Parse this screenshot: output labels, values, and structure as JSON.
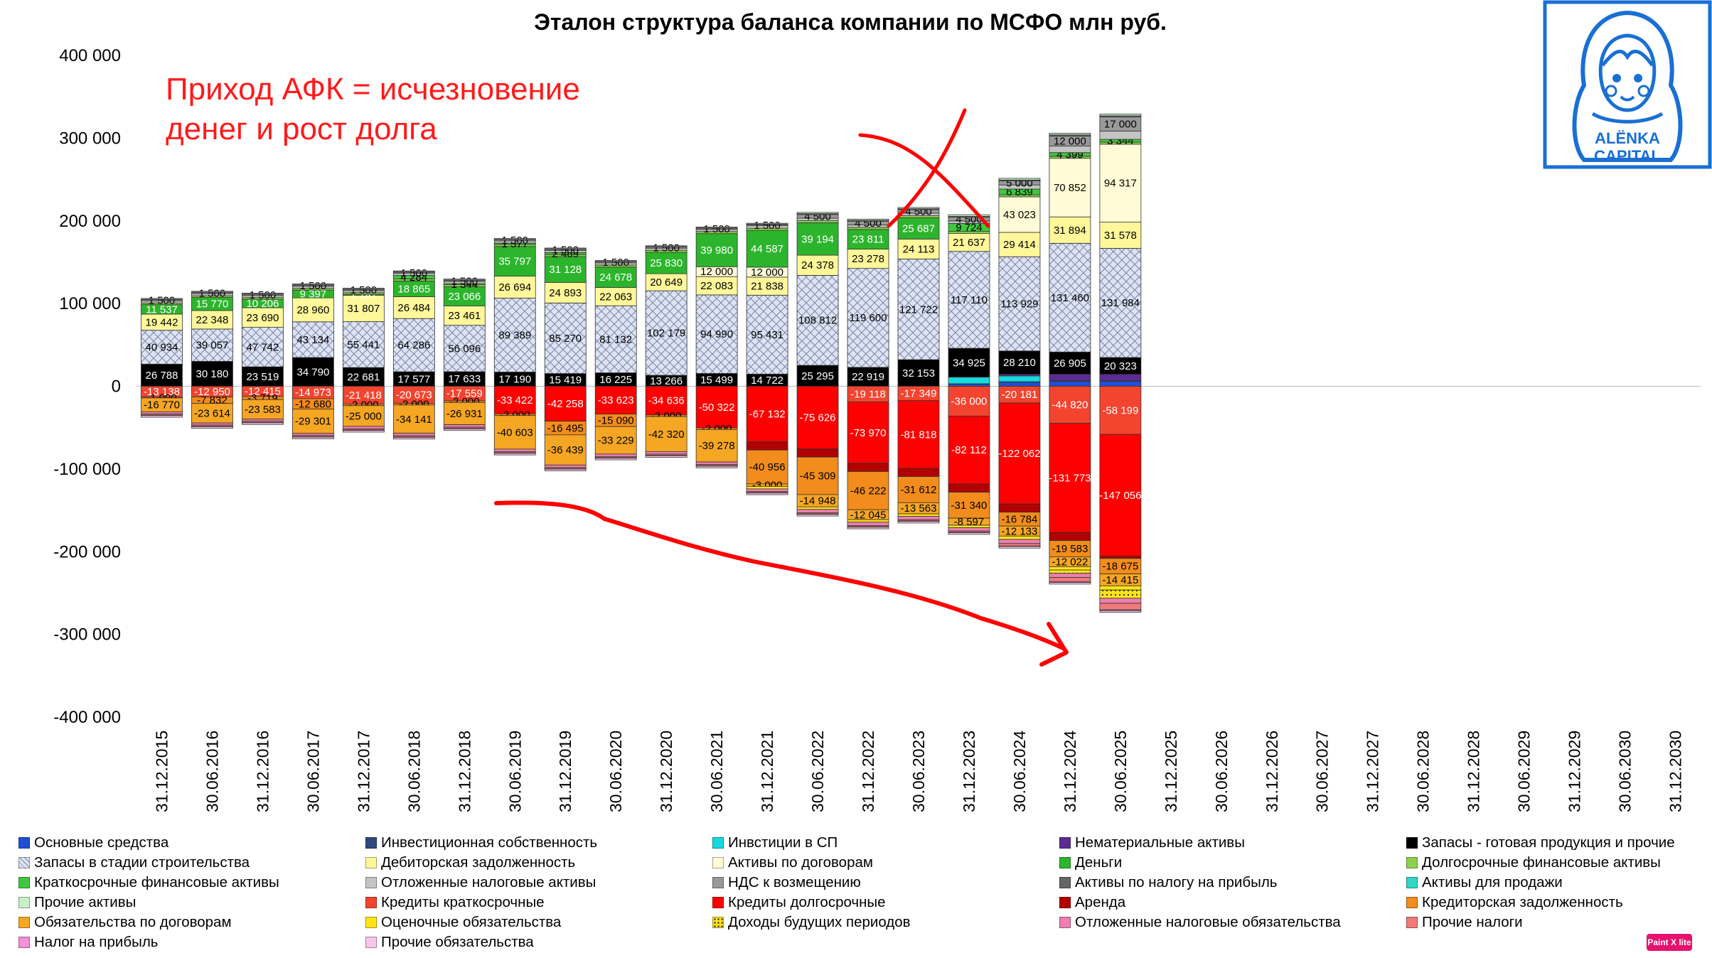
{
  "chart_data": {
    "type": "bar",
    "stacked": true,
    "title": "Эталон структура баланса компании по МСФО млн руб.",
    "ylim": [
      -400000,
      400000
    ],
    "yticks": [
      {
        "v": 400000,
        "label": "400 000"
      },
      {
        "v": 300000,
        "label": "300 000"
      },
      {
        "v": 200000,
        "label": "200 000"
      },
      {
        "v": 100000,
        "label": "100 000"
      },
      {
        "v": 0,
        "label": "0"
      },
      {
        "v": -100000,
        "label": "-100 000"
      },
      {
        "v": -200000,
        "label": "-200 000"
      },
      {
        "v": -300000,
        "label": "-300 000"
      },
      {
        "v": -400000,
        "label": "-400 000"
      }
    ],
    "categories": [
      "31.12.2015",
      "30.06.2016",
      "31.12.2016",
      "30.06.2017",
      "31.12.2017",
      "30.06.2018",
      "31.12.2018",
      "30.06.2019",
      "31.12.2019",
      "30.06.2020",
      "31.12.2020",
      "30.06.2021",
      "31.12.2021",
      "30.06.2022",
      "31.12.2022",
      "30.06.2023",
      "31.12.2023",
      "30.06.2024",
      "31.12.2024",
      "30.06.2025",
      "31.12.2025",
      "30.06.2026",
      "31.12.2026",
      "30.06.2027",
      "31.12.2027",
      "30.06.2028",
      "31.12.2028",
      "30.06.2029",
      "31.12.2029",
      "30.06.2030",
      "31.12.2030"
    ],
    "series": [
      {
        "name": "Основные средства",
        "color": "#1f4fd6",
        "pattern": "",
        "labels": false,
        "values": [
          0,
          0,
          0,
          0,
          0,
          0,
          0,
          0,
          0,
          0,
          0,
          0,
          0,
          0,
          0,
          0,
          2500,
          5000,
          6000,
          6000,
          null,
          null,
          null,
          null,
          null,
          null,
          null,
          null,
          null,
          null,
          null
        ]
      },
      {
        "name": "Инвестиционная собственность",
        "color": "#2e4a7c",
        "pattern": "",
        "labels": false,
        "values": [
          0,
          0,
          0,
          0,
          0,
          0,
          0,
          0,
          0,
          0,
          0,
          0,
          0,
          0,
          0,
          0,
          500,
          500,
          500,
          500,
          null,
          null,
          null,
          null,
          null,
          null,
          null,
          null,
          null,
          null,
          null
        ]
      },
      {
        "name": "Инвстиции в СП",
        "color": "#17d9e0",
        "pattern": "",
        "labels": false,
        "values": [
          0,
          0,
          0,
          0,
          0,
          0,
          0,
          0,
          0,
          0,
          0,
          0,
          0,
          0,
          0,
          0,
          8000,
          7000,
          0,
          0,
          null,
          null,
          null,
          null,
          null,
          null,
          null,
          null,
          null,
          null,
          null
        ]
      },
      {
        "name": "Нематериальные активы",
        "color": "#5a2d91",
        "pattern": "",
        "labels": false,
        "values": [
          0,
          0,
          0,
          0,
          0,
          0,
          0,
          0,
          0,
          0,
          0,
          0,
          0,
          0,
          0,
          0,
          0,
          2000,
          8000,
          8000,
          null,
          null,
          null,
          null,
          null,
          null,
          null,
          null,
          null,
          null,
          null
        ]
      },
      {
        "name": "Запасы - готовая продукция и прочие",
        "color": "#000000",
        "pattern": "",
        "labels": true,
        "values": [
          26788,
          30180,
          23519,
          34790,
          22681,
          17577,
          17633,
          17190,
          15419,
          16225,
          13266,
          15499,
          14722,
          25295,
          22919,
          32153,
          34925,
          28210,
          26905,
          20323,
          null,
          null,
          null,
          null,
          null,
          null,
          null,
          null,
          null,
          null,
          null
        ]
      },
      {
        "name": "Запасы в стадии строительства",
        "color": "#dde3f3",
        "pattern": "hatch",
        "labels": true,
        "values": [
          40934,
          39057,
          47742,
          43134,
          55441,
          64286,
          56096,
          89389,
          85270,
          81132,
          102179,
          94990,
          95431,
          108812,
          119600,
          121722,
          117110,
          113929,
          131460,
          131984,
          null,
          null,
          null,
          null,
          null,
          null,
          null,
          null,
          null,
          null,
          null
        ]
      },
      {
        "name": "Дебиторская задолженность",
        "color": "#fff79a",
        "pattern": "",
        "labels": true,
        "values": [
          19442,
          22348,
          23690,
          28960,
          31807,
          26484,
          23461,
          26694,
          24893,
          22063,
          20649,
          22083,
          21838,
          24378,
          23278,
          24113,
          21637,
          29414,
          31894,
          31578,
          null,
          null,
          null,
          null,
          null,
          null,
          null,
          null,
          null,
          null,
          null
        ]
      },
      {
        "name": "Активы по договорам",
        "color": "#fffbd6",
        "pattern": "",
        "labels": true,
        "values": [
          0,
          0,
          0,
          0,
          0,
          0,
          0,
          0,
          0,
          0,
          0,
          12000,
          12000,
          0,
          0,
          0,
          0,
          43023,
          70852,
          94317,
          null,
          null,
          null,
          null,
          null,
          null,
          null,
          null,
          null,
          null,
          null
        ]
      },
      {
        "name": "Деньги",
        "color": "#2cb52c",
        "pattern": "",
        "labels": true,
        "values": [
          11537,
          15770,
          10206,
          9397,
          1187,
          18865,
          23066,
          35797,
          31128,
          24678,
          25830,
          39980,
          44587,
          39194,
          23811,
          25687,
          0,
          0,
          0,
          0,
          null,
          null,
          null,
          null,
          null,
          null,
          null,
          null,
          null,
          null,
          null
        ]
      },
      {
        "name": "Долгосрочные финансовые активы",
        "color": "#8fd14f",
        "pattern": "",
        "labels": false,
        "values": [
          2000,
          2000,
          2000,
          2000,
          2000,
          2500,
          2500,
          2500,
          2500,
          2500,
          2500,
          2500,
          2500,
          2500,
          2500,
          2500,
          2500,
          2500,
          2500,
          2500,
          null,
          null,
          null,
          null,
          null,
          null,
          null,
          null,
          null,
          null,
          null
        ]
      },
      {
        "name": "Краткосрочные финансовые активы",
        "color": "#3fc83f",
        "pattern": "",
        "labels": true,
        "values": [
          0,
          0,
          0,
          0,
          0,
          4284,
          1344,
          1577,
          2469,
          0,
          0,
          0,
          0,
          0,
          0,
          0,
          9724,
          6839,
          4399,
          3344,
          null,
          null,
          null,
          null,
          null,
          null,
          null,
          null,
          null,
          null,
          null
        ]
      },
      {
        "name": "Отложенные налоговые активы",
        "color": "#c4c4c4",
        "pattern": "",
        "labels": false,
        "values": [
          2500,
          2500,
          2500,
          2500,
          2500,
          2500,
          2500,
          2500,
          2500,
          2500,
          2500,
          2500,
          3000,
          3000,
          3000,
          3000,
          3000,
          5000,
          8000,
          10000,
          null,
          null,
          null,
          null,
          null,
          null,
          null,
          null,
          null,
          null,
          null
        ]
      },
      {
        "name": "НДС к возмещению",
        "color": "#999999",
        "pattern": "",
        "labels": true,
        "values": [
          1500,
          1500,
          1500,
          1500,
          1500,
          1500,
          1500,
          1500,
          1500,
          1500,
          1500,
          1500,
          1500,
          4500,
          4500,
          4500,
          4500,
          5000,
          12000,
          17000,
          null,
          null,
          null,
          null,
          null,
          null,
          null,
          null,
          null,
          null,
          null
        ]
      },
      {
        "name": "Активы по налогу на прибыль",
        "color": "#666666",
        "pattern": "",
        "labels": false,
        "values": [
          500,
          500,
          500,
          500,
          500,
          500,
          500,
          500,
          500,
          500,
          500,
          500,
          500,
          1000,
          1000,
          1000,
          1000,
          1000,
          1500,
          1500,
          null,
          null,
          null,
          null,
          null,
          null,
          null,
          null,
          null,
          null,
          null
        ]
      },
      {
        "name": "Активы для продажи",
        "color": "#33d6c4",
        "pattern": "",
        "labels": false,
        "values": [
          0,
          0,
          0,
          0,
          0,
          0,
          0,
          0,
          0,
          0,
          0,
          0,
          0,
          0,
          0,
          0,
          0,
          0,
          0,
          0,
          null,
          null,
          null,
          null,
          null,
          null,
          null,
          null,
          null,
          null,
          null
        ]
      },
      {
        "name": "Прочие активы",
        "color": "#c8f0c8",
        "pattern": "",
        "labels": false,
        "values": [
          1000,
          1000,
          1000,
          1000,
          1000,
          1000,
          1000,
          1000,
          1000,
          1000,
          1000,
          1000,
          1000,
          1500,
          1500,
          1500,
          2000,
          2000,
          2000,
          2000,
          null,
          null,
          null,
          null,
          null,
          null,
          null,
          null,
          null,
          null,
          null
        ]
      },
      {
        "name": "Кредиты краткосрочные",
        "color": "#f2442f",
        "pattern": "",
        "labels": true,
        "values": [
          -13138,
          -12950,
          -12415,
          -14973,
          -21418,
          -20673,
          -17559,
          0,
          0,
          0,
          0,
          0,
          0,
          0,
          -19118,
          -17349,
          -36000,
          -20181,
          -44820,
          -58199,
          null,
          null,
          null,
          null,
          null,
          null,
          null,
          null,
          null,
          null,
          null
        ]
      },
      {
        "name": "Кредиты долгосрочные",
        "color": "#ff0000",
        "pattern": "",
        "labels": true,
        "values": [
          0,
          0,
          0,
          0,
          0,
          0,
          0,
          -33422,
          -42258,
          -33623,
          -34636,
          -50322,
          -67132,
          -75626,
          -73970,
          -81818,
          -82112,
          -122062,
          -131773,
          -147056,
          null,
          null,
          null,
          null,
          null,
          null,
          null,
          null,
          null,
          null,
          null
        ]
      },
      {
        "name": "Аренда",
        "color": "#b00000",
        "pattern": "",
        "labels": false,
        "values": [
          0,
          0,
          0,
          0,
          0,
          0,
          0,
          0,
          0,
          0,
          0,
          0,
          -10000,
          -10000,
          -10000,
          -10000,
          -10000,
          -10000,
          -10000,
          -3000,
          null,
          null,
          null,
          null,
          null,
          null,
          null,
          null,
          null,
          null,
          null
        ]
      },
      {
        "name": "Кредиторская задолженность",
        "color": "#f28c1c",
        "pattern": "",
        "labels": true,
        "values": [
          -1000,
          -7832,
          -3719,
          -12680,
          -2000,
          -2000,
          -2000,
          -2000,
          -16495,
          -15090,
          -2000,
          -2000,
          -40956,
          -45309,
          -46222,
          -31612,
          -31340,
          -16784,
          -19583,
          -18675,
          null,
          null,
          null,
          null,
          null,
          null,
          null,
          null,
          null,
          null,
          null
        ]
      },
      {
        "name": "Обязательства по договорам",
        "color": "#f5a623",
        "pattern": "",
        "labels": true,
        "values": [
          -16770,
          -23614,
          -23583,
          -29301,
          -25000,
          -34141,
          -26931,
          -40603,
          -36439,
          -33229,
          -42320,
          -39278,
          -3000,
          -14948,
          -12045,
          -13563,
          -8597,
          -12133,
          -12022,
          -14415,
          null,
          null,
          null,
          null,
          null,
          null,
          null,
          null,
          null,
          null,
          null
        ]
      },
      {
        "name": "Оценочные обязательства",
        "color": "#ffe51a",
        "pattern": "",
        "labels": false,
        "values": [
          0,
          0,
          0,
          0,
          0,
          0,
          0,
          0,
          0,
          0,
          0,
          0,
          -3000,
          -3000,
          -3000,
          -3000,
          -3000,
          -4000,
          -4000,
          -5000,
          null,
          null,
          null,
          null,
          null,
          null,
          null,
          null,
          null,
          null,
          null
        ]
      },
      {
        "name": "Доходы будущих периодов",
        "color": "#fff070",
        "pattern": "dots",
        "labels": false,
        "values": [
          0,
          0,
          0,
          0,
          0,
          0,
          0,
          0,
          0,
          0,
          0,
          0,
          0,
          0,
          0,
          0,
          0,
          0,
          -4000,
          -10000,
          null,
          null,
          null,
          null,
          null,
          null,
          null,
          null,
          null,
          null,
          null
        ]
      },
      {
        "name": "Отложенные налоговые обязательства",
        "color": "#ee7fb0",
        "pattern": "",
        "labels": false,
        "values": [
          -2500,
          -2500,
          -2500,
          -2500,
          -3000,
          -3000,
          -3000,
          -3000,
          -3000,
          -3000,
          -3000,
          -3000,
          -3000,
          -4000,
          -4000,
          -4000,
          -4000,
          -5000,
          -5000,
          -6000,
          null,
          null,
          null,
          null,
          null,
          null,
          null,
          null,
          null,
          null,
          null
        ]
      },
      {
        "name": "Прочие налоги",
        "color": "#f07a7a",
        "pattern": "",
        "labels": false,
        "values": [
          -1500,
          -1500,
          -1500,
          -1500,
          -1500,
          -1500,
          -1500,
          -1500,
          -1500,
          -1500,
          -1500,
          -1500,
          -1500,
          -1500,
          -1500,
          -1500,
          -1500,
          -3000,
          -5000,
          -8000,
          null,
          null,
          null,
          null,
          null,
          null,
          null,
          null,
          null,
          null,
          null
        ]
      },
      {
        "name": "Налог на прибыль",
        "color": "#f48fd8",
        "pattern": "",
        "labels": false,
        "values": [
          -500,
          -500,
          -500,
          -500,
          -500,
          -500,
          -500,
          -500,
          -500,
          -500,
          -500,
          -500,
          -500,
          -500,
          -500,
          -500,
          -500,
          -500,
          -1000,
          -1000,
          null,
          null,
          null,
          null,
          null,
          null,
          null,
          null,
          null,
          null,
          null
        ]
      },
      {
        "name": "Прочие обязательства",
        "color": "#f7c6e8",
        "pattern": "",
        "labels": false,
        "values": [
          -2000,
          -2000,
          -2000,
          -2000,
          -2000,
          -2000,
          -2000,
          -2000,
          -2000,
          -2000,
          -2000,
          -2000,
          -2000,
          -2000,
          -2000,
          -2000,
          -2000,
          -2000,
          -2000,
          -2000,
          null,
          null,
          null,
          null,
          null,
          null,
          null,
          null,
          null,
          null,
          null
        ]
      }
    ]
  },
  "annotation": {
    "line1": "Приход АФК = исчезновение",
    "line2": "денег и рост долга"
  },
  "logo": {
    "line1": "ALЁNKA",
    "line2": "CAPITAL"
  },
  "badge": "Paint X lite"
}
